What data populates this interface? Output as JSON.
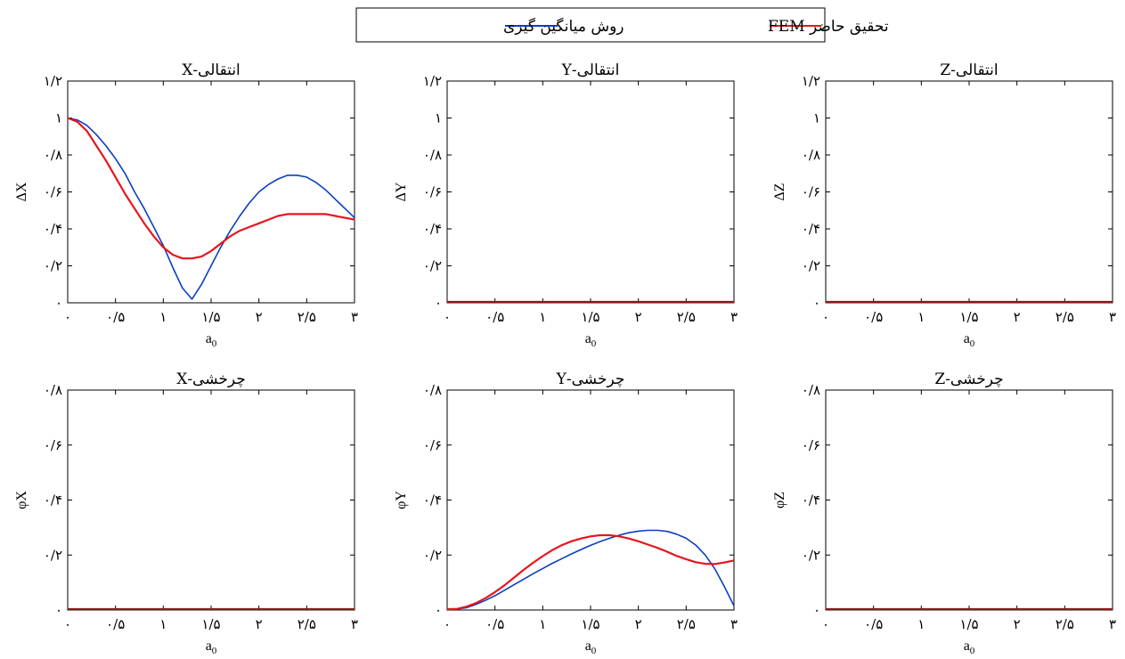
{
  "legend": {
    "entries": [
      {
        "label": "روش میانگین گیری",
        "color": "#0b3fbf"
      },
      {
        "label": "تحقیق حاضر FEM",
        "color": "#e8141e"
      }
    ]
  },
  "chart_data": [
    {
      "type": "line",
      "title": "انتقالی-X",
      "xlabel": "a0",
      "ylabel": "ΔX",
      "xlim": [
        0,
        3
      ],
      "ylim": [
        0,
        1.2
      ],
      "xticks": [
        0,
        0.5,
        1,
        1.5,
        2,
        2.5,
        3
      ],
      "xtick_labels": [
        "۰",
        "۰/۵",
        "۱",
        "۱/۵",
        "۲",
        "۲/۵",
        "۳"
      ],
      "yticks": [
        0,
        0.2,
        0.4,
        0.6,
        0.8,
        1,
        1.2
      ],
      "ytick_labels": [
        "۰",
        "۰/۲",
        "۰/۴",
        "۰/۶",
        "۰/۸",
        "۱",
        "۱/۲"
      ],
      "series": [
        {
          "name": "روش میانگین گیری",
          "color": "#0b3fbf",
          "x": [
            0,
            0.1,
            0.2,
            0.3,
            0.4,
            0.5,
            0.6,
            0.7,
            0.8,
            0.9,
            1.0,
            1.1,
            1.2,
            1.3,
            1.4,
            1.5,
            1.6,
            1.7,
            1.8,
            1.9,
            2.0,
            2.1,
            2.2,
            2.3,
            2.4,
            2.5,
            2.6,
            2.7,
            2.8,
            2.9,
            3.0
          ],
          "y": [
            1.0,
            0.99,
            0.96,
            0.91,
            0.85,
            0.78,
            0.7,
            0.6,
            0.51,
            0.41,
            0.31,
            0.19,
            0.08,
            0.02,
            0.1,
            0.2,
            0.3,
            0.39,
            0.47,
            0.54,
            0.6,
            0.64,
            0.67,
            0.69,
            0.69,
            0.68,
            0.65,
            0.61,
            0.56,
            0.51,
            0.46
          ]
        },
        {
          "name": "تحقیق حاضر FEM",
          "color": "#e8141e",
          "x": [
            0,
            0.1,
            0.2,
            0.3,
            0.4,
            0.5,
            0.6,
            0.7,
            0.8,
            0.9,
            1.0,
            1.1,
            1.2,
            1.3,
            1.4,
            1.5,
            1.6,
            1.7,
            1.8,
            1.9,
            2.0,
            2.1,
            2.2,
            2.3,
            2.4,
            2.5,
            2.6,
            2.7,
            2.8,
            2.9,
            3.0
          ],
          "y": [
            1.0,
            0.98,
            0.93,
            0.85,
            0.77,
            0.68,
            0.59,
            0.51,
            0.43,
            0.36,
            0.3,
            0.26,
            0.24,
            0.24,
            0.25,
            0.28,
            0.32,
            0.36,
            0.39,
            0.41,
            0.43,
            0.45,
            0.47,
            0.48,
            0.48,
            0.48,
            0.48,
            0.48,
            0.47,
            0.46,
            0.45
          ]
        }
      ]
    },
    {
      "type": "line",
      "title": "انتقالی-Y",
      "xlabel": "a0",
      "ylabel": "ΔY",
      "xlim": [
        0,
        3
      ],
      "ylim": [
        0,
        1.2
      ],
      "xticks": [
        0,
        0.5,
        1,
        1.5,
        2,
        2.5,
        3
      ],
      "xtick_labels": [
        "۰",
        "۰/۵",
        "۱",
        "۱/۵",
        "۲",
        "۲/۵",
        "۳"
      ],
      "yticks": [
        0,
        0.2,
        0.4,
        0.6,
        0.8,
        1,
        1.2
      ],
      "ytick_labels": [
        "۰",
        "۰/۲",
        "۰/۴",
        "۰/۶",
        "۰/۸",
        "۱",
        "۱/۲"
      ],
      "series": [
        {
          "name": "روش میانگین گیری",
          "color": "#0b3fbf",
          "x": [
            0,
            3
          ],
          "y": [
            0,
            0
          ]
        },
        {
          "name": "تحقیق حاضر FEM",
          "color": "#8b1a1a",
          "x": [
            0,
            3
          ],
          "y": [
            0,
            0
          ]
        }
      ]
    },
    {
      "type": "line",
      "title": "انتقالی-Z",
      "xlabel": "a0",
      "ylabel": "ΔZ",
      "xlim": [
        0,
        3
      ],
      "ylim": [
        0,
        1.2
      ],
      "xticks": [
        0,
        0.5,
        1,
        1.5,
        2,
        2.5,
        3
      ],
      "xtick_labels": [
        "۰",
        "۰/۵",
        "۱",
        "۱/۵",
        "۲",
        "۲/۵",
        "۳"
      ],
      "yticks": [
        0,
        0.2,
        0.4,
        0.6,
        0.8,
        1,
        1.2
      ],
      "ytick_labels": [
        "۰",
        "۰/۲",
        "۰/۴",
        "۰/۶",
        "۰/۸",
        "۱",
        "۱/۲"
      ],
      "series": [
        {
          "name": "روش میانگین گیری",
          "color": "#0b3fbf",
          "x": [
            0,
            3
          ],
          "y": [
            0,
            0
          ]
        },
        {
          "name": "تحقیق حاضر FEM",
          "color": "#8b1a1a",
          "x": [
            0,
            3
          ],
          "y": [
            0,
            0
          ]
        }
      ]
    },
    {
      "type": "line",
      "title": "چرخشی-X",
      "xlabel": "a0",
      "ylabel": "φX",
      "xlim": [
        0,
        3
      ],
      "ylim": [
        0,
        0.8
      ],
      "xticks": [
        0,
        0.5,
        1,
        1.5,
        2,
        2.5,
        3
      ],
      "xtick_labels": [
        "۰",
        "۰/۵",
        "۱",
        "۱/۵",
        "۲",
        "۲/۵",
        "۳"
      ],
      "yticks": [
        0,
        0.2,
        0.4,
        0.6,
        0.8
      ],
      "ytick_labels": [
        "۰",
        "۰/۲",
        "۰/۴",
        "۰/۶",
        "۰/۸"
      ],
      "series": [
        {
          "name": "روش میانگین گیری",
          "color": "#0b3fbf",
          "x": [
            0,
            3
          ],
          "y": [
            0,
            0
          ]
        },
        {
          "name": "تحقیق حاضر FEM",
          "color": "#8b1a1a",
          "x": [
            0,
            3
          ],
          "y": [
            0,
            0
          ]
        }
      ]
    },
    {
      "type": "line",
      "title": "چرخشی-Y",
      "xlabel": "a0",
      "ylabel": "φY",
      "xlim": [
        0,
        3
      ],
      "ylim": [
        0,
        0.8
      ],
      "xticks": [
        0,
        0.5,
        1,
        1.5,
        2,
        2.5,
        3
      ],
      "xtick_labels": [
        "۰",
        "۰/۵",
        "۱",
        "۱/۵",
        "۲",
        "۲/۵",
        "۳"
      ],
      "yticks": [
        0,
        0.2,
        0.4,
        0.6,
        0.8
      ],
      "ytick_labels": [
        "۰",
        "۰/۲",
        "۰/۴",
        "۰/۶",
        "۰/۸"
      ],
      "series": [
        {
          "name": "روش میانگین گیری",
          "color": "#0b3fbf",
          "x": [
            0,
            0.1,
            0.2,
            0.3,
            0.4,
            0.5,
            0.6,
            0.7,
            0.8,
            0.9,
            1.0,
            1.1,
            1.2,
            1.3,
            1.4,
            1.5,
            1.6,
            1.7,
            1.8,
            1.9,
            2.0,
            2.1,
            2.2,
            2.3,
            2.4,
            2.5,
            2.6,
            2.7,
            2.8,
            2.9,
            3.0
          ],
          "y": [
            0.0,
            0.002,
            0.008,
            0.02,
            0.035,
            0.052,
            0.072,
            0.092,
            0.112,
            0.132,
            0.151,
            0.17,
            0.187,
            0.204,
            0.22,
            0.235,
            0.249,
            0.261,
            0.272,
            0.281,
            0.287,
            0.29,
            0.29,
            0.286,
            0.276,
            0.261,
            0.236,
            0.2,
            0.15,
            0.085,
            0.015
          ]
        },
        {
          "name": "تحقیق حاضر FEM",
          "color": "#e8141e",
          "x": [
            0,
            0.1,
            0.2,
            0.3,
            0.4,
            0.5,
            0.6,
            0.7,
            0.8,
            0.9,
            1.0,
            1.1,
            1.2,
            1.3,
            1.4,
            1.5,
            1.6,
            1.7,
            1.8,
            1.9,
            2.0,
            2.1,
            2.2,
            2.3,
            2.4,
            2.5,
            2.6,
            2.7,
            2.8,
            2.9,
            3.0
          ],
          "y": [
            0.0,
            0.004,
            0.012,
            0.025,
            0.043,
            0.065,
            0.09,
            0.118,
            0.146,
            0.172,
            0.196,
            0.218,
            0.236,
            0.25,
            0.26,
            0.268,
            0.272,
            0.272,
            0.268,
            0.26,
            0.25,
            0.238,
            0.226,
            0.212,
            0.197,
            0.185,
            0.174,
            0.168,
            0.167,
            0.173,
            0.18
          ]
        }
      ]
    },
    {
      "type": "line",
      "title": "چرخشی-Z",
      "xlabel": "a0",
      "ylabel": "φZ",
      "xlim": [
        0,
        3
      ],
      "ylim": [
        0,
        0.8
      ],
      "xticks": [
        0,
        0.5,
        1,
        1.5,
        2,
        2.5,
        3
      ],
      "xtick_labels": [
        "۰",
        "۰/۵",
        "۱",
        "۱/۵",
        "۲",
        "۲/۵",
        "۳"
      ],
      "yticks": [
        0,
        0.2,
        0.4,
        0.6,
        0.8
      ],
      "ytick_labels": [
        "۰",
        "۰/۲",
        "۰/۴",
        "۰/۶",
        "۰/۸"
      ],
      "series": [
        {
          "name": "روش میانگین گیری",
          "color": "#0b3fbf",
          "x": [
            0,
            3
          ],
          "y": [
            0,
            0
          ]
        },
        {
          "name": "تحقیق حاضر FEM",
          "color": "#8b1a1a",
          "x": [
            0,
            3
          ],
          "y": [
            0,
            0
          ]
        }
      ]
    }
  ]
}
